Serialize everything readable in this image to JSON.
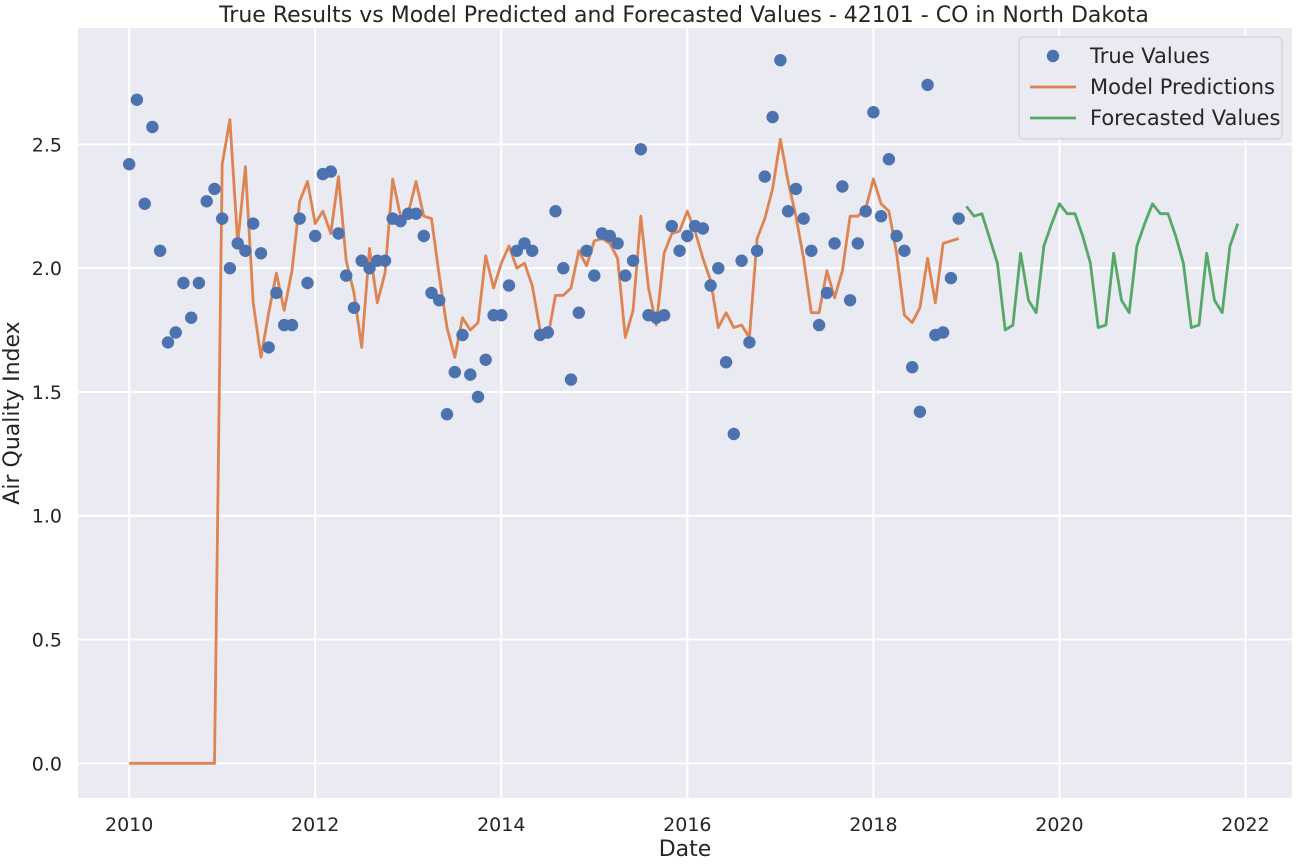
{
  "chart_data": {
    "type": "line",
    "title": "True Results vs Model Predicted and Forecasted Values - 42101 - CO in North Dakota",
    "xlabel": "Date",
    "ylabel": "Air Quality Index",
    "xlim": [
      2009.45,
      2022.5
    ],
    "ylim": [
      -0.14,
      2.97
    ],
    "x_ticks": [
      2010,
      2012,
      2014,
      2016,
      2018,
      2020,
      2022
    ],
    "y_ticks": [
      0.0,
      0.5,
      1.0,
      1.5,
      2.0,
      2.5
    ],
    "y_tick_labels": [
      "0.0",
      "0.5",
      "1.0",
      "1.5",
      "2.0",
      "2.5"
    ],
    "grid": true,
    "legend_position": "top-right",
    "colors": {
      "plot_bg": "#eaeaf2",
      "grid": "#ffffff",
      "true": "#4c72b0",
      "model": "#dd8452",
      "forecast": "#55a868"
    },
    "series": [
      {
        "name": "True Values",
        "style": "scatter",
        "x": [
          2010.0,
          2010.083,
          2010.167,
          2010.25,
          2010.333,
          2010.417,
          2010.5,
          2010.583,
          2010.667,
          2010.75,
          2010.833,
          2010.917,
          2011.0,
          2011.083,
          2011.167,
          2011.25,
          2011.333,
          2011.417,
          2011.5,
          2011.583,
          2011.667,
          2011.75,
          2011.833,
          2011.917,
          2012.0,
          2012.083,
          2012.167,
          2012.25,
          2012.333,
          2012.417,
          2012.5,
          2012.583,
          2012.667,
          2012.75,
          2012.833,
          2012.917,
          2013.0,
          2013.083,
          2013.167,
          2013.25,
          2013.333,
          2013.417,
          2013.5,
          2013.583,
          2013.667,
          2013.75,
          2013.833,
          2013.917,
          2014.0,
          2014.083,
          2014.167,
          2014.25,
          2014.333,
          2014.417,
          2014.5,
          2014.583,
          2014.667,
          2014.75,
          2014.833,
          2014.917,
          2015.0,
          2015.083,
          2015.167,
          2015.25,
          2015.333,
          2015.417,
          2015.5,
          2015.583,
          2015.667,
          2015.75,
          2015.833,
          2015.917,
          2016.0,
          2016.083,
          2016.167,
          2016.25,
          2016.333,
          2016.417,
          2016.5,
          2016.583,
          2016.667,
          2016.75,
          2016.833,
          2016.917,
          2017.0,
          2017.083,
          2017.167,
          2017.25,
          2017.333,
          2017.417,
          2017.5,
          2017.583,
          2017.667,
          2017.75,
          2017.833,
          2017.917,
          2018.0,
          2018.083,
          2018.167,
          2018.25,
          2018.333,
          2018.417,
          2018.5,
          2018.583,
          2018.667,
          2018.75,
          2018.833,
          2018.917
        ],
        "values": [
          2.42,
          2.68,
          2.26,
          2.57,
          2.07,
          1.7,
          1.74,
          1.94,
          1.8,
          1.94,
          2.27,
          2.32,
          2.2,
          2.0,
          2.1,
          2.07,
          2.18,
          2.06,
          1.68,
          1.9,
          1.77,
          1.77,
          2.2,
          1.94,
          2.13,
          2.38,
          2.39,
          2.14,
          1.97,
          1.84,
          2.03,
          2.0,
          2.03,
          2.03,
          2.2,
          2.19,
          2.22,
          2.22,
          2.13,
          1.9,
          1.87,
          1.41,
          1.58,
          1.73,
          1.57,
          1.48,
          1.63,
          1.81,
          1.81,
          1.93,
          2.07,
          2.1,
          2.07,
          1.73,
          1.74,
          2.23,
          2.0,
          1.55,
          1.82,
          2.07,
          1.97,
          2.14,
          2.13,
          2.1,
          1.97,
          2.03,
          2.48,
          1.81,
          1.8,
          1.81,
          2.17,
          2.07,
          2.13,
          2.17,
          2.16,
          1.93,
          2.0,
          1.62,
          1.33,
          2.03,
          1.7,
          2.07,
          2.37,
          2.61,
          2.84,
          2.23,
          2.32,
          2.2,
          2.07,
          1.77,
          1.9,
          2.1,
          2.33,
          1.87,
          2.1,
          2.23,
          2.63,
          2.21,
          2.44,
          2.13,
          2.07,
          1.6,
          1.42,
          2.74,
          1.73,
          1.74,
          1.96,
          2.2
        ]
      },
      {
        "name": "Model Predictions",
        "style": "line",
        "x": [
          2010.0,
          2010.917,
          2011.0,
          2011.083,
          2011.167,
          2011.25,
          2011.333,
          2011.417,
          2011.5,
          2011.583,
          2011.667,
          2011.75,
          2011.833,
          2011.917,
          2012.0,
          2012.083,
          2012.167,
          2012.25,
          2012.333,
          2012.417,
          2012.5,
          2012.583,
          2012.667,
          2012.75,
          2012.833,
          2012.917,
          2013.0,
          2013.083,
          2013.167,
          2013.25,
          2013.333,
          2013.417,
          2013.5,
          2013.583,
          2013.667,
          2013.75,
          2013.833,
          2013.917,
          2014.0,
          2014.083,
          2014.167,
          2014.25,
          2014.333,
          2014.417,
          2014.5,
          2014.583,
          2014.667,
          2014.75,
          2014.833,
          2014.917,
          2015.0,
          2015.083,
          2015.167,
          2015.25,
          2015.333,
          2015.417,
          2015.5,
          2015.583,
          2015.667,
          2015.75,
          2015.833,
          2015.917,
          2016.0,
          2016.083,
          2016.167,
          2016.25,
          2016.333,
          2016.417,
          2016.5,
          2016.583,
          2016.667,
          2016.75,
          2016.833,
          2016.917,
          2017.0,
          2017.083,
          2017.167,
          2017.25,
          2017.333,
          2017.417,
          2017.5,
          2017.583,
          2017.667,
          2017.75,
          2017.833,
          2017.917,
          2018.0,
          2018.083,
          2018.167,
          2018.25,
          2018.333,
          2018.417,
          2018.5,
          2018.583,
          2018.667,
          2018.75,
          2018.833,
          2018.917
        ],
        "values": [
          0.0,
          0.0,
          2.42,
          2.6,
          2.1,
          2.41,
          1.86,
          1.64,
          1.82,
          1.98,
          1.83,
          1.99,
          2.27,
          2.35,
          2.18,
          2.23,
          2.14,
          2.37,
          2.03,
          1.9,
          1.68,
          2.08,
          1.86,
          1.98,
          2.36,
          2.21,
          2.22,
          2.35,
          2.21,
          2.2,
          1.97,
          1.76,
          1.64,
          1.8,
          1.75,
          1.78,
          2.05,
          1.92,
          2.02,
          2.09,
          2.0,
          2.02,
          1.93,
          1.75,
          1.72,
          1.89,
          1.89,
          1.92,
          2.07,
          2.01,
          2.11,
          2.12,
          2.1,
          2.04,
          1.72,
          1.83,
          2.21,
          1.92,
          1.77,
          2.06,
          2.14,
          2.15,
          2.23,
          2.15,
          2.04,
          1.95,
          1.76,
          1.82,
          1.76,
          1.77,
          1.72,
          2.12,
          2.2,
          2.32,
          2.52,
          2.35,
          2.21,
          2.04,
          1.82,
          1.82,
          1.99,
          1.88,
          1.99,
          2.21,
          2.21,
          2.24,
          2.36,
          2.26,
          2.23,
          2.06,
          1.81,
          1.78,
          1.84,
          2.04,
          1.86,
          2.1,
          2.11,
          2.12
        ]
      },
      {
        "name": "Forecasted Values",
        "style": "line",
        "x": [
          2019.0,
          2019.083,
          2019.167,
          2019.25,
          2019.333,
          2019.417,
          2019.5,
          2019.583,
          2019.667,
          2019.75,
          2019.833,
          2019.917,
          2020.0,
          2020.083,
          2020.167,
          2020.25,
          2020.333,
          2020.417,
          2020.5,
          2020.583,
          2020.667,
          2020.75,
          2020.833,
          2020.917,
          2021.0,
          2021.083,
          2021.167,
          2021.25,
          2021.333,
          2021.417,
          2021.5,
          2021.583,
          2021.667,
          2021.75,
          2021.833,
          2021.917
        ],
        "values": [
          2.25,
          2.21,
          2.22,
          2.12,
          2.02,
          1.75,
          1.77,
          2.06,
          1.87,
          1.82,
          2.09,
          2.18,
          2.26,
          2.22,
          2.22,
          2.13,
          2.02,
          1.76,
          1.77,
          2.06,
          1.87,
          1.82,
          2.09,
          2.18,
          2.26,
          2.22,
          2.22,
          2.13,
          2.02,
          1.76,
          1.77,
          2.06,
          1.87,
          1.82,
          2.09,
          2.18
        ]
      }
    ]
  }
}
